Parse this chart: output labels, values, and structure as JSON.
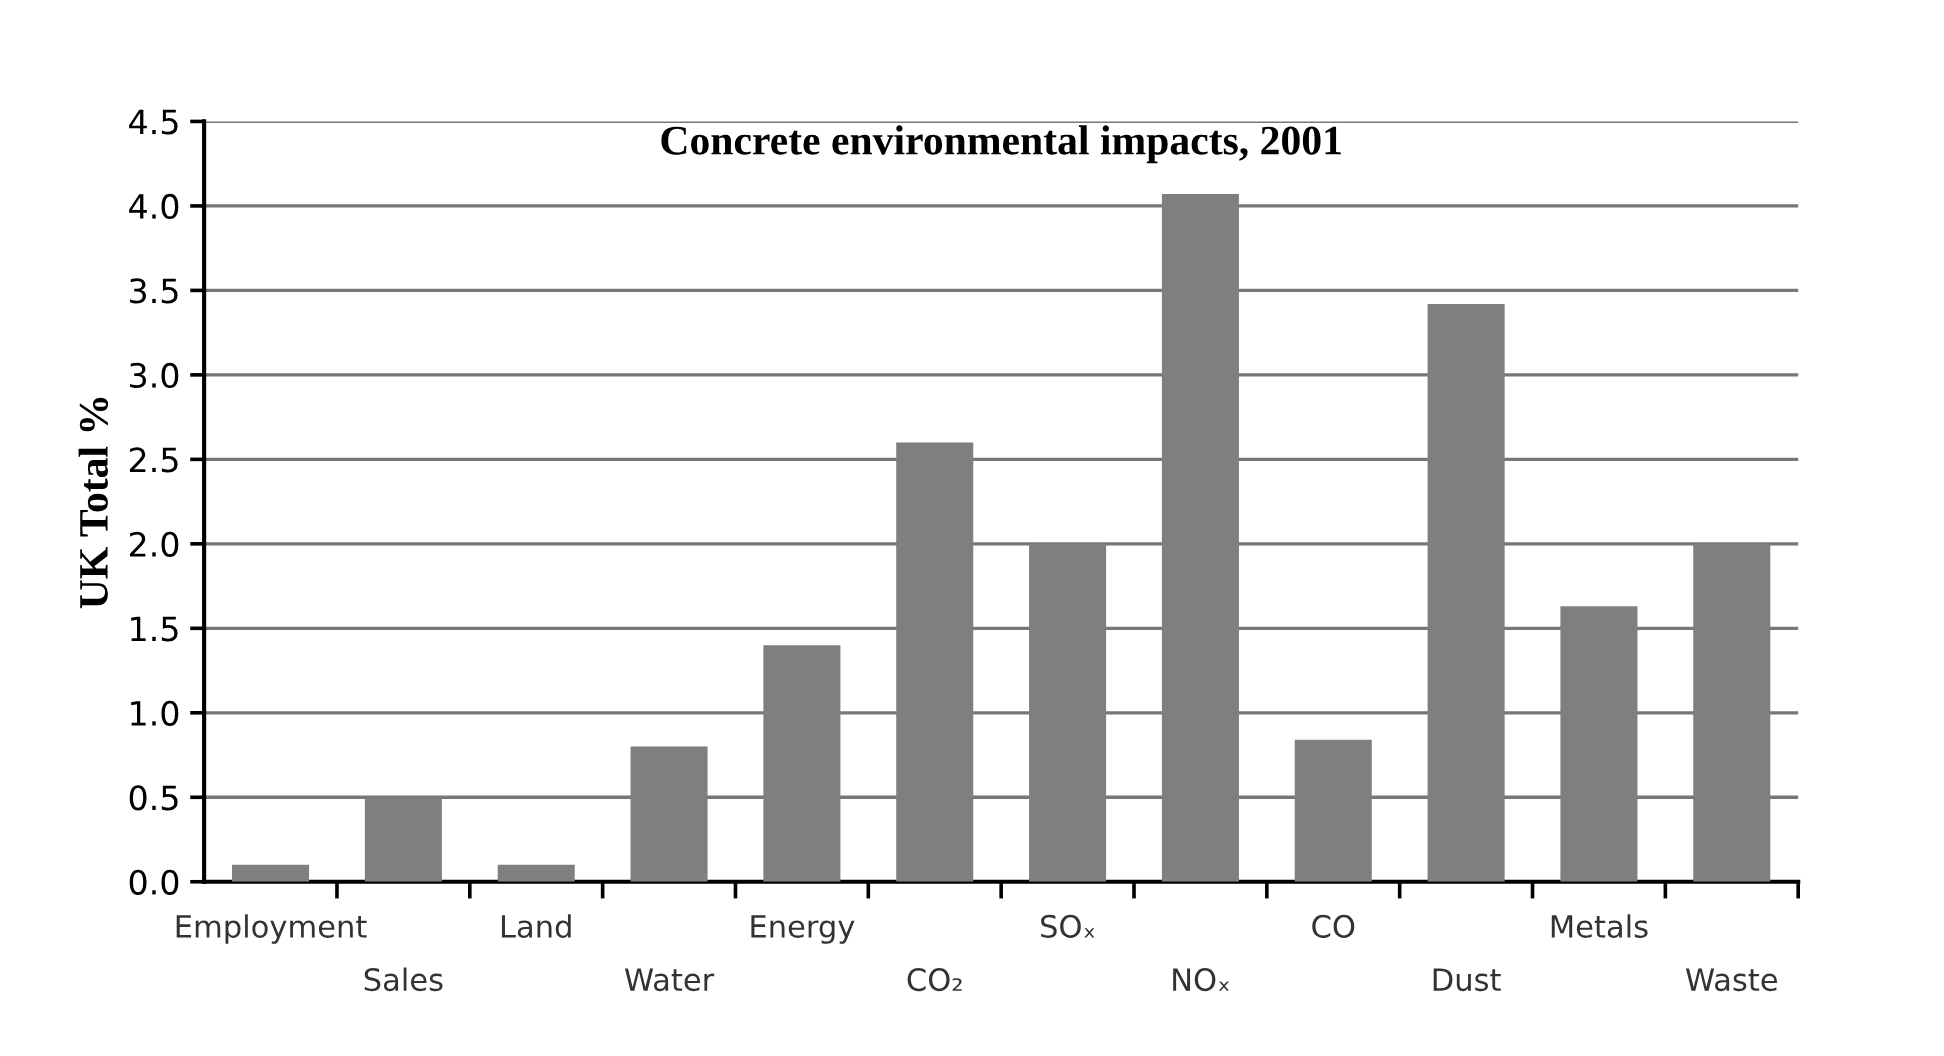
{
  "chart_data": {
    "type": "bar",
    "title": "Concrete environmental impacts, 2001",
    "ylabel": "UK Total %",
    "categories": [
      "Employment",
      "Sales",
      "Land",
      "Water",
      "Energy",
      "CO₂",
      "SOₓ",
      "NOₓ",
      "CO",
      "Dust",
      "Metals",
      "Waste"
    ],
    "values": [
      0.1,
      0.5,
      0.1,
      0.8,
      1.4,
      2.6,
      2.0,
      4.07,
      0.84,
      3.42,
      1.63,
      2.0
    ],
    "color": "#7f7f7f",
    "ylim": [
      0,
      4.5
    ],
    "yticks": [
      {
        "value": 0,
        "label": "0.0"
      },
      {
        "value": 0.5,
        "label": "0.5"
      },
      {
        "value": 1,
        "label": "1.0"
      },
      {
        "value": 1.5,
        "label": "1.5"
      },
      {
        "value": 2,
        "label": "2.0"
      },
      {
        "value": 2.5,
        "label": "2.5"
      },
      {
        "value": 3,
        "label": "3.0"
      },
      {
        "value": 3.5,
        "label": "3.5"
      },
      {
        "value": 4,
        "label": "4.0"
      },
      {
        "value": 4.5,
        "label": "4.5"
      }
    ],
    "grid": "y",
    "legend": false
  }
}
